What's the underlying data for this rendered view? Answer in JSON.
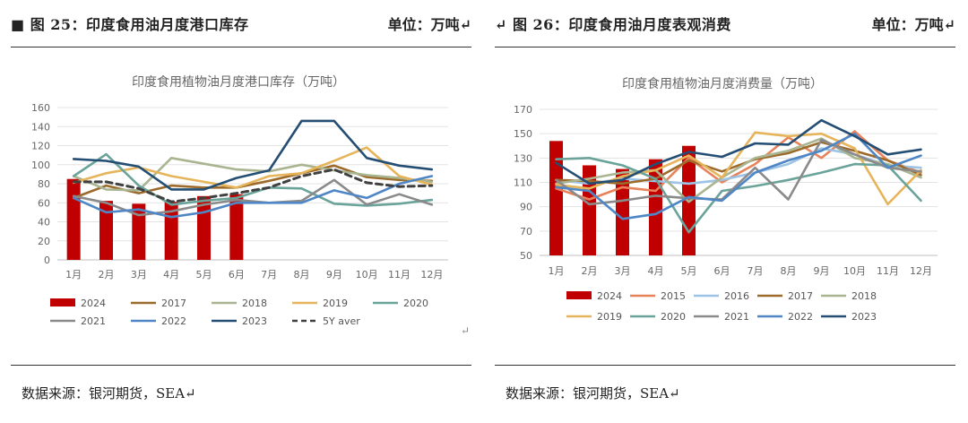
{
  "left": {
    "heading": "■ 图 25：印度食用油月度港口库存",
    "unit": "单位：万吨↵",
    "source": "数据来源：银河期货，SEA↵"
  },
  "right": {
    "heading": "↵  图 26：印度食用油月度表观消费",
    "unit": "单位：万吨↵",
    "source": "数据来源：银河期货，SEA↵"
  },
  "margin_glyph": "↵",
  "chart_data": [
    {
      "type": "bar+line",
      "title": "印度食用植物油月度港口库存（万吨）",
      "categories": [
        "1月",
        "2月",
        "3月",
        "4月",
        "5月",
        "6月",
        "7月",
        "8月",
        "9月",
        "10月",
        "11月",
        "12月"
      ],
      "ylim": [
        0,
        160
      ],
      "yticks": [
        0,
        20,
        40,
        60,
        80,
        100,
        120,
        140,
        160
      ],
      "grid": true,
      "legend_position": "bottom",
      "bar_series": {
        "name": "2024",
        "color": "#c00000",
        "values": [
          85,
          62,
          59,
          61,
          67,
          69
        ]
      },
      "series": [
        {
          "name": "2017",
          "color": "#9c6b2c",
          "values": [
            65,
            78,
            70,
            78,
            76,
            76,
            83,
            91,
            99,
            87,
            84,
            83
          ]
        },
        {
          "name": "2018",
          "color": "#a9b590",
          "values": [
            88,
            74,
            73,
            107,
            101,
            95,
            93,
            100,
            94,
            89,
            86,
            82
          ]
        },
        {
          "name": "2019",
          "color": "#e6b45a",
          "values": [
            81,
            91,
            97,
            88,
            82,
            76,
            88,
            91,
            104,
            118,
            88,
            79
          ]
        },
        {
          "name": "2020",
          "color": "#6aa39a",
          "values": [
            88,
            111,
            78,
            58,
            62,
            65,
            76,
            75,
            59,
            57,
            59,
            63
          ]
        },
        {
          "name": "2021",
          "color": "#8a8a8a",
          "values": [
            67,
            60,
            47,
            51,
            58,
            63,
            60,
            62,
            84,
            58,
            69,
            58
          ]
        },
        {
          "name": "2022",
          "color": "#4f86c6",
          "values": [
            65,
            50,
            53,
            45,
            50,
            60,
            60,
            60,
            73,
            65,
            80,
            88
          ]
        },
        {
          "name": "2023",
          "color": "#244e73",
          "values": [
            106,
            104,
            98,
            74,
            74,
            86,
            94,
            146,
            146,
            107,
            99,
            95
          ]
        },
        {
          "name": "5Y aver",
          "color": "#404040",
          "dashed": true,
          "values": [
            82,
            82,
            75,
            61,
            65,
            70,
            76,
            88,
            95,
            81,
            77,
            78
          ]
        }
      ]
    },
    {
      "type": "bar+line",
      "title": "印度食用植物油月度消费量（万吨）",
      "categories": [
        "1月",
        "2月",
        "3月",
        "4月",
        "5月",
        "6月",
        "7月",
        "8月",
        "9月",
        "10月",
        "11月",
        "12月"
      ],
      "ylim": [
        50,
        170
      ],
      "yticks": [
        50,
        70,
        90,
        110,
        130,
        150,
        170
      ],
      "grid": true,
      "legend_position": "bottom",
      "bar_series": {
        "name": "2024",
        "color": "#c00000",
        "values": [
          144,
          124,
          121,
          129,
          140
        ]
      },
      "series": [
        {
          "name": "2015",
          "color": "#e8825a",
          "values": [
            105,
            96,
            106,
            103,
            130,
            110,
            125,
            147,
            130,
            152,
            128,
            118
          ]
        },
        {
          "name": "2016",
          "color": "#9dc3e6",
          "values": [
            112,
            109,
            113,
            111,
            109,
            112,
            118,
            125,
            138,
            133,
            124,
            122
          ]
        },
        {
          "name": "2017",
          "color": "#9c6b2c",
          "values": [
            112,
            111,
            109,
            113,
            128,
            119,
            129,
            134,
            143,
            136,
            128,
            116
          ]
        },
        {
          "name": "2018",
          "color": "#a9b590",
          "values": [
            109,
            113,
            118,
            120,
            94,
            114,
            130,
            136,
            146,
            130,
            125,
            114
          ]
        },
        {
          "name": "2019",
          "color": "#e6b45a",
          "values": [
            108,
            105,
            115,
            120,
            132,
            114,
            151,
            148,
            150,
            138,
            92,
            120
          ]
        },
        {
          "name": "2020",
          "color": "#6aa39a",
          "values": [
            129,
            130,
            124,
            113,
            69,
            103,
            107,
            112,
            118,
            125,
            124,
            95
          ]
        },
        {
          "name": "2021",
          "color": "#8a8a8a",
          "values": [
            112,
            92,
            95,
            99,
            97,
            96,
            122,
            96,
            145,
            133,
            122,
            119
          ]
        },
        {
          "name": "2022",
          "color": "#4f86c6",
          "values": [
            106,
            103,
            80,
            84,
            98,
            95,
            118,
            128,
            136,
            150,
            122,
            132
          ]
        },
        {
          "name": "2023",
          "color": "#244e73",
          "values": [
            126,
            109,
            112,
            125,
            135,
            131,
            142,
            141,
            161,
            148,
            133,
            137
          ]
        }
      ]
    }
  ]
}
